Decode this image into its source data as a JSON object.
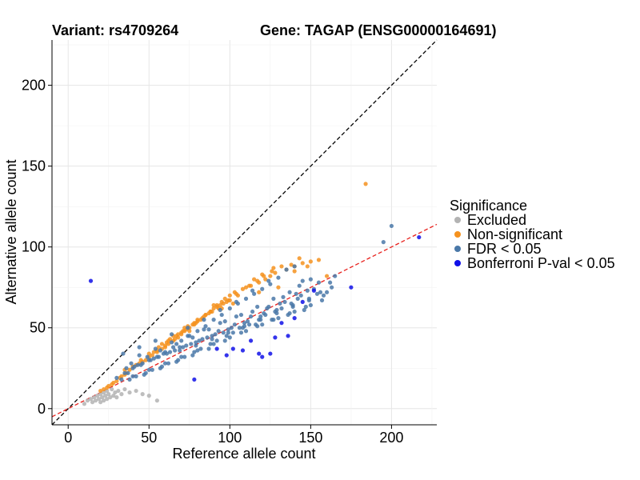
{
  "chart_data": {
    "type": "scatter",
    "title_variant": "Variant: rs4709264",
    "title_gene": "Gene: TAGAP (ENSG00000164691)",
    "xlabel": "Reference allele count",
    "ylabel": "Alternative allele count",
    "xlim": [
      -10,
      228
    ],
    "ylim": [
      -10,
      228
    ],
    "xticks": [
      0,
      50,
      100,
      150,
      200
    ],
    "yticks": [
      0,
      50,
      100,
      150,
      200
    ],
    "grid": true,
    "legend": {
      "title": "Significance",
      "position": "right",
      "entries": [
        {
          "key": "excluded",
          "label": "Excluded",
          "color": "#b3b3b3"
        },
        {
          "key": "nonsig",
          "label": "Non-significant",
          "color": "#f5921e"
        },
        {
          "key": "fdr",
          "label": "FDR < 0.05",
          "color": "#4a78a8"
        },
        {
          "key": "bonf",
          "label": "Bonferroni P-val < 0.05",
          "color": "#1010e8"
        }
      ]
    },
    "reference_lines": [
      {
        "name": "identity",
        "slope": 1,
        "intercept": 0,
        "color": "#000000",
        "dash": "dashed"
      },
      {
        "name": "fit",
        "slope": 0.5,
        "intercept": 0,
        "color": "#e8201c",
        "dash": "dashed"
      }
    ],
    "series": [
      {
        "name": "Excluded",
        "color": "#b3b3b3",
        "x": [
          10,
          12,
          14,
          15,
          16,
          17,
          18,
          19,
          20,
          20,
          21,
          22,
          22,
          23,
          24,
          24,
          25,
          26,
          27,
          28,
          29,
          30,
          31,
          33,
          35,
          38,
          42,
          46,
          50,
          55
        ],
        "y": [
          3,
          5,
          6,
          4,
          7,
          5,
          8,
          6,
          9,
          4,
          7,
          5,
          10,
          8,
          6,
          11,
          9,
          7,
          12,
          8,
          10,
          7,
          11,
          9,
          12,
          10,
          11,
          9,
          8,
          5
        ]
      },
      {
        "name": "Non-significant",
        "color": "#f5921e",
        "x": [
          184,
          125,
          127,
          130,
          140,
          155,
          148,
          160,
          115,
          118,
          120,
          105,
          110,
          100,
          102,
          95,
          98,
          90,
          92,
          88,
          85,
          82,
          80,
          78,
          75,
          72,
          70,
          68,
          66,
          65,
          62,
          60,
          58,
          55,
          52,
          50,
          48,
          46,
          44,
          42,
          40,
          38,
          36,
          35,
          33,
          32,
          30,
          28,
          27,
          25,
          24,
          22,
          20,
          35,
          45,
          50,
          55,
          60,
          62,
          65,
          70,
          72,
          75,
          78,
          80,
          85,
          88,
          90,
          92,
          95,
          97,
          100,
          103,
          108,
          112,
          118,
          122,
          128,
          135,
          140,
          145,
          150,
          58,
          63,
          68,
          73,
          77,
          83,
          87,
          93,
          96,
          99,
          104,
          113,
          117,
          121,
          126,
          132,
          138,
          143,
          53,
          56,
          61,
          67,
          71,
          74,
          79,
          84,
          89,
          94
        ],
        "y": [
          139,
          82,
          87,
          75,
          85,
          92,
          88,
          82,
          80,
          72,
          83,
          70,
          75,
          67,
          65,
          62,
          66,
          64,
          63,
          60,
          58,
          55,
          54,
          52,
          48,
          50,
          46,
          44,
          43,
          42,
          40,
          39,
          37,
          35,
          33,
          32,
          30,
          29,
          28,
          27,
          26,
          24,
          22,
          21,
          20,
          19,
          17,
          16,
          15,
          14,
          13,
          12,
          11,
          24,
          30,
          34,
          36,
          38,
          42,
          45,
          47,
          48,
          50,
          53,
          55,
          58,
          60,
          62,
          64,
          66,
          68,
          70,
          72,
          74,
          76,
          78,
          80,
          84,
          86,
          88,
          90,
          91,
          40,
          43,
          46,
          49,
          52,
          56,
          59,
          62,
          65,
          67,
          71,
          76,
          79,
          82,
          85,
          88,
          89,
          93,
          35,
          38,
          41,
          45,
          48,
          51,
          53,
          57,
          60,
          64
        ]
      },
      {
        "name": "FDR < 0.05",
        "color": "#4a78a8",
        "x": [
          200,
          195,
          165,
          150,
          145,
          140,
          160,
          155,
          135,
          130,
          125,
          120,
          115,
          110,
          105,
          100,
          95,
          90,
          85,
          80,
          75,
          70,
          65,
          60,
          55,
          50,
          45,
          40,
          35,
          30,
          142,
          138,
          132,
          128,
          122,
          118,
          112,
          108,
          102,
          98,
          92,
          88,
          82,
          78,
          72,
          68,
          62,
          58,
          52,
          48,
          42,
          38,
          146,
          136,
          126,
          116,
          106,
          96,
          86,
          76,
          66,
          56,
          46,
          36,
          152,
          144,
          134,
          124,
          114,
          104,
          94,
          84,
          74,
          64,
          54,
          44,
          40,
          50,
          60,
          70,
          80,
          90,
          100,
          110,
          120,
          130,
          140,
          150,
          158,
          148,
          133,
          123,
          113,
          103,
          93,
          83,
          73,
          63,
          53,
          43,
          47,
          57,
          67,
          77,
          87,
          97,
          107,
          117,
          127,
          137,
          147,
          157,
          163,
          141,
          131,
          121,
          111,
          101,
          91,
          81,
          71,
          61,
          51,
          41,
          37,
          33,
          59,
          69,
          79,
          89,
          99,
          109,
          119,
          129,
          139,
          149,
          154,
          143,
          137,
          127,
          117,
          107,
          97,
          87,
          77,
          67,
          57,
          49,
          39,
          69,
          79,
          89,
          99,
          109,
          119,
          129,
          139,
          149,
          156,
          162,
          124,
          114,
          104,
          94,
          84,
          74,
          64,
          54,
          44,
          34
        ],
        "y": [
          113,
          103,
          82,
          80,
          79,
          88,
          72,
          78,
          86,
          81,
          77,
          74,
          71,
          68,
          65,
          62,
          58,
          55,
          51,
          48,
          45,
          42,
          38,
          35,
          32,
          30,
          27,
          25,
          22,
          19,
          68,
          65,
          62,
          60,
          58,
          55,
          52,
          50,
          47,
          45,
          42,
          40,
          37,
          35,
          32,
          30,
          28,
          26,
          24,
          22,
          20,
          18,
          61,
          58,
          55,
          52,
          50,
          47,
          44,
          40,
          36,
          32,
          28,
          25,
          74,
          70,
          66,
          63,
          60,
          57,
          53,
          49,
          45,
          41,
          37,
          33,
          20,
          24,
          28,
          32,
          36,
          40,
          44,
          48,
          52,
          56,
          60,
          64,
          70,
          73,
          69,
          62,
          57,
          52,
          48,
          43,
          39,
          35,
          31,
          27,
          21,
          25,
          29,
          33,
          37,
          42,
          47,
          51,
          55,
          59,
          63,
          67,
          75,
          71,
          65,
          59,
          54,
          50,
          46,
          42,
          38,
          34,
          30,
          26,
          22,
          18,
          34,
          38,
          41,
          45,
          49,
          53,
          57,
          61,
          64,
          68,
          71,
          76,
          72,
          68,
          63,
          58,
          54,
          49,
          44,
          40,
          36,
          32,
          28,
          36,
          39,
          43,
          47,
          51,
          55,
          59,
          63,
          67,
          72,
          78,
          79,
          73,
          66,
          61,
          55,
          50,
          46,
          42,
          38,
          34
        ]
      },
      {
        "name": "Bonferroni P-val < 0.05",
        "color": "#1010e8",
        "x": [
          14,
          217,
          175,
          152,
          145,
          140,
          132,
          125,
          120,
          118,
          113,
          108,
          102,
          98,
          78,
          92,
          128,
          136
        ],
        "y": [
          79,
          106,
          75,
          73,
          66,
          56,
          53,
          34,
          32,
          34,
          42,
          36,
          37,
          33,
          18,
          37,
          44,
          45
        ]
      }
    ]
  }
}
